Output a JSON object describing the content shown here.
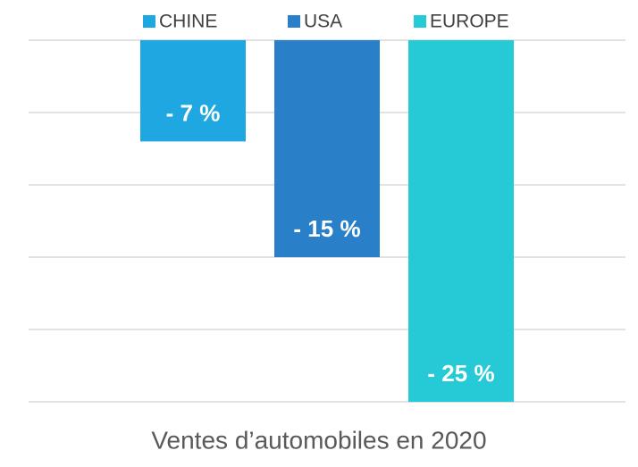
{
  "chart_data": {
    "type": "bar",
    "categories": [
      "Ventes d’automobiles en 2020"
    ],
    "series": [
      {
        "name": "CHINE",
        "color": "#1ea7e1",
        "values": [
          -7
        ],
        "value_labels": [
          "- 7 %"
        ]
      },
      {
        "name": "USA",
        "color": "#2a7fc9",
        "values": [
          -15
        ],
        "value_labels": [
          "- 15 %"
        ]
      },
      {
        "name": "EUROPE",
        "color": "#26cad6",
        "values": [
          -25
        ],
        "value_labels": [
          "- 25 %"
        ]
      }
    ],
    "ylim": [
      -25,
      0
    ],
    "yticks": [
      -25,
      -20,
      -15,
      -10,
      -5,
      0
    ],
    "grid": true,
    "legend": "top"
  }
}
